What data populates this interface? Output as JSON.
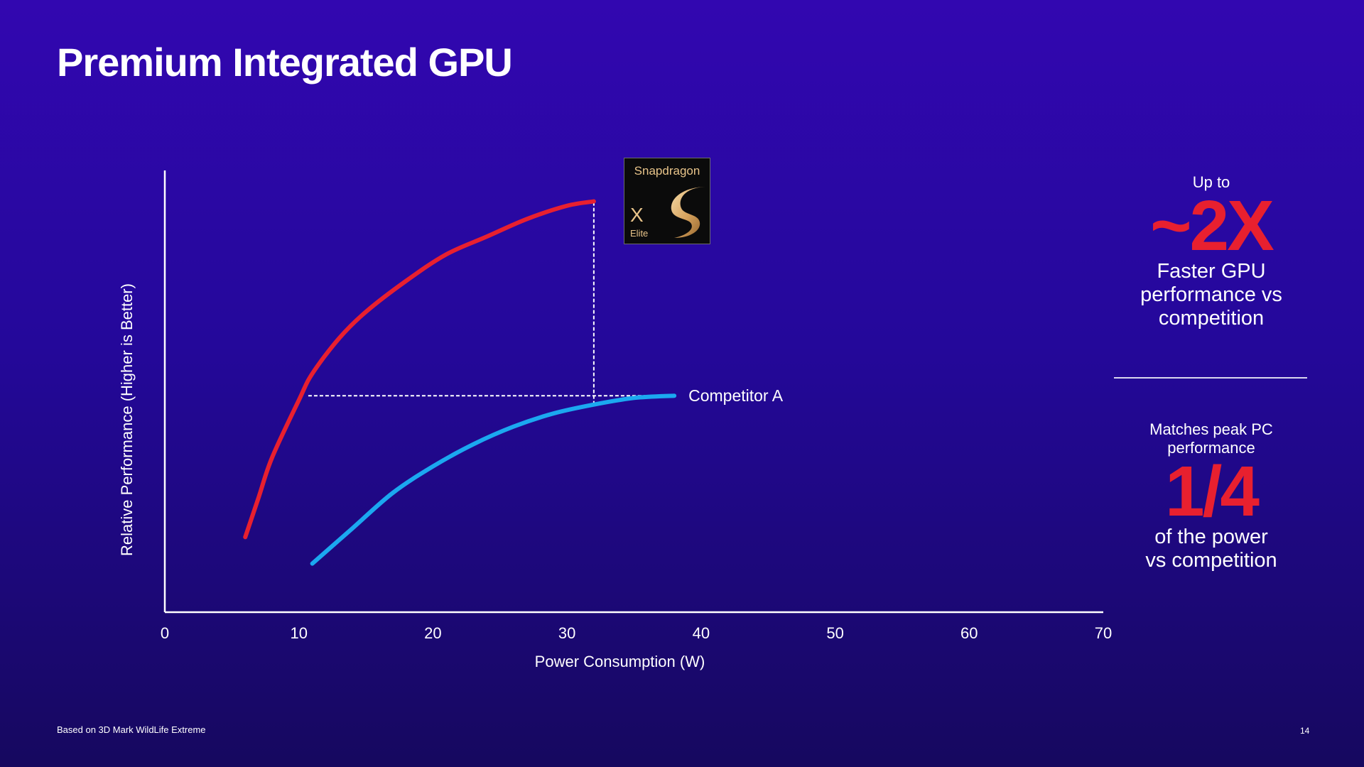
{
  "slide": {
    "title": "Premium Integrated GPU",
    "footnote": "Based on 3D Mark WildLife Extreme",
    "page_number": "14"
  },
  "badge": {
    "brand": "Snapdragon",
    "model": "X",
    "tier": "Elite",
    "logo_icon": "snapdragon-s-logo"
  },
  "callouts": {
    "top": {
      "prefix": "Up to",
      "headline": "~2X",
      "line1": "Faster GPU",
      "line2": "performance vs",
      "line3": "competition"
    },
    "bottom": {
      "prefix_line1": "Matches peak PC",
      "prefix_line2": "performance",
      "headline": "1/4",
      "line1": "of the power",
      "line2": "vs competition"
    },
    "headline_color": "#e8202f"
  },
  "chart_data": {
    "type": "line",
    "xlabel": "Power Consumption (W)",
    "ylabel": "Relative Performance (Higher is Better)",
    "xlim": [
      0,
      70
    ],
    "ylim": [
      0,
      100
    ],
    "xticks": [
      "0",
      "10",
      "20",
      "30",
      "40",
      "50",
      "60",
      "70"
    ],
    "grid": false,
    "series": [
      {
        "name": "",
        "color": "#e8202f",
        "x": [
          6,
          7,
          8,
          10,
          11,
          13,
          15,
          18,
          21,
          24,
          27,
          30,
          32
        ],
        "y": [
          17,
          26,
          35,
          48,
          54,
          62,
          68,
          75,
          81,
          85,
          89,
          92,
          93
        ]
      },
      {
        "name": "Competitor A",
        "color": "#1ba8f0",
        "x": [
          11,
          14,
          17,
          20,
          23,
          26,
          29,
          32,
          35,
          38
        ],
        "y": [
          11,
          19,
          27,
          33,
          38,
          42,
          45,
          47,
          48.5,
          49
        ]
      }
    ],
    "annotations": [
      {
        "type": "hline",
        "y": 49,
        "x_from": 10.7,
        "x_to": 38
      },
      {
        "type": "vline",
        "x": 32,
        "y_from": 47,
        "y_to": 93
      }
    ]
  }
}
